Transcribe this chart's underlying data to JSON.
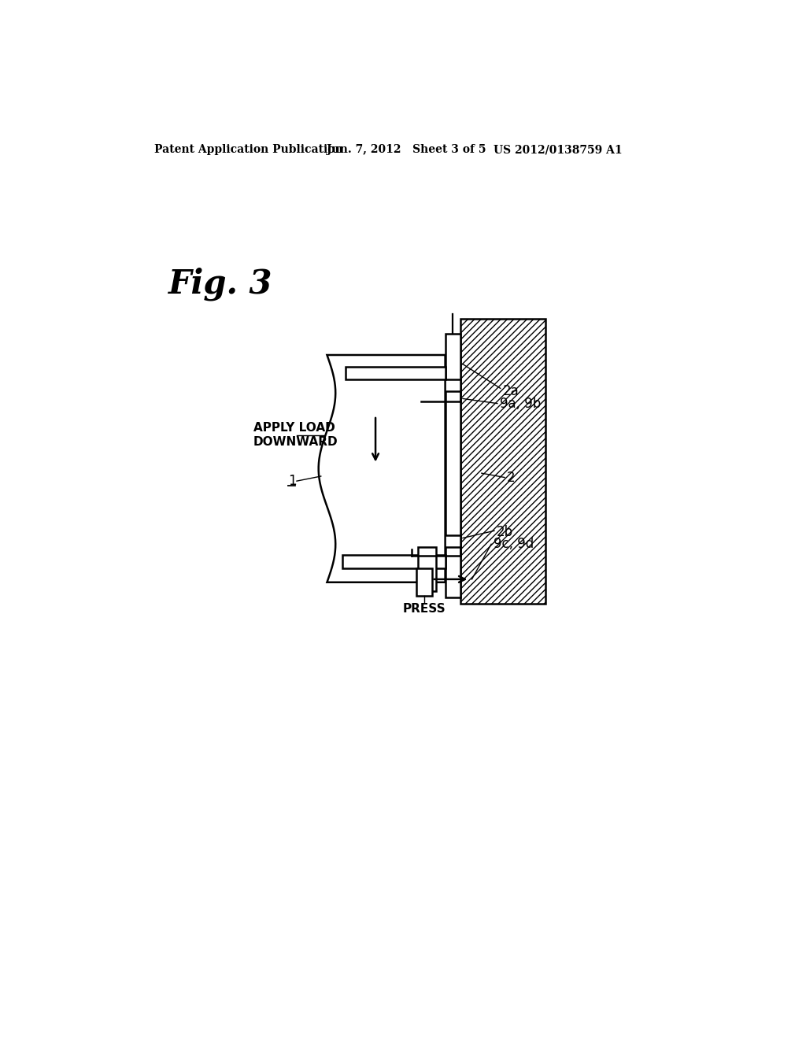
{
  "bg_color": "#ffffff",
  "header_left": "Patent Application Publication",
  "header_mid": "Jun. 7, 2012   Sheet 3 of 5",
  "header_right": "US 2012/0138759 A1",
  "fig_label": "Fig. 3",
  "label_2a": "2a",
  "label_9a9b": "9a, 9b",
  "label_2": "2",
  "label_2b": "2b",
  "label_9c9d": "9c, 9d",
  "label_1": "1",
  "label_apply_load": "APPLY LOAD\nDOWNWARD",
  "label_press": "PRESS",
  "line_color": "#000000"
}
